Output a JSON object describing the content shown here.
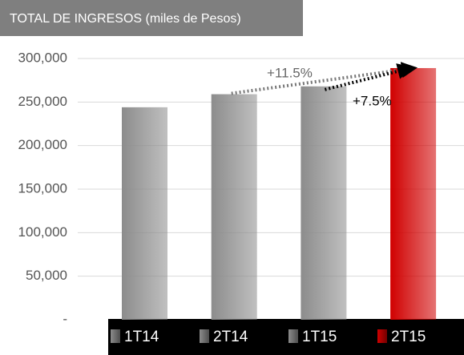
{
  "chart_data": {
    "type": "bar",
    "title": "TOTAL DE INGRESOS (miles de Pesos)",
    "categories": [
      "1T14",
      "2T14",
      "1T15",
      "2T15"
    ],
    "values": [
      244000,
      259000,
      268000,
      289000
    ],
    "colors": [
      "#8c8c8c",
      "#8c8c8c",
      "#8c8c8c",
      "#d00000"
    ],
    "ylim": [
      0,
      300000
    ],
    "yticks": [
      {
        "value": 0,
        "label": "-"
      },
      {
        "value": 50000,
        "label": "50,000"
      },
      {
        "value": 100000,
        "label": "100,000"
      },
      {
        "value": 150000,
        "label": "150,000"
      },
      {
        "value": 200000,
        "label": "200,000"
      },
      {
        "value": 250000,
        "label": "250,000"
      },
      {
        "value": 300000,
        "label": "300,000"
      }
    ],
    "grid": true,
    "annotations": [
      "+11.5%",
      "+7.5%"
    ]
  }
}
